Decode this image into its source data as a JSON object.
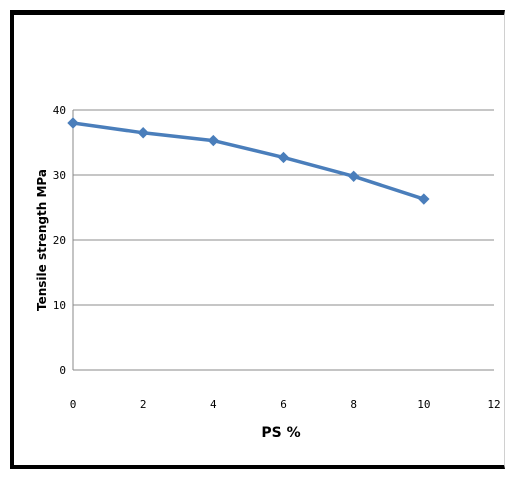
{
  "chart_data": {
    "type": "line",
    "title": "",
    "xlabel": "PS %",
    "ylabel": "Tensile strength MPa",
    "x_ticks": [
      "0",
      "2",
      "4",
      "6",
      "8",
      "10",
      "12"
    ],
    "y_ticks": [
      "0",
      "10",
      "20",
      "30",
      "40"
    ],
    "xlim": [
      0,
      12
    ],
    "ylim": [
      0,
      40
    ],
    "grid": "horizontal",
    "legend": "none",
    "series": [
      {
        "x": [
          0,
          2,
          4,
          6,
          8,
          10
        ],
        "values": [
          38,
          36.5,
          35.3,
          32.7,
          29.8,
          26.3
        ],
        "color": "#4a7ebb",
        "marker": "diamond"
      }
    ]
  }
}
